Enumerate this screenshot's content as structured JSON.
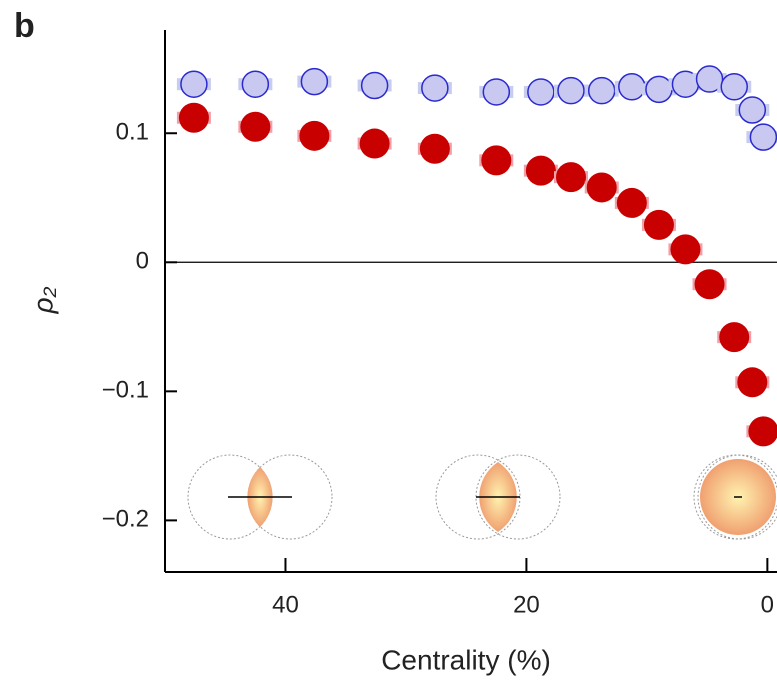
{
  "chart_data": {
    "type": "scatter",
    "panel_label": "b",
    "xlabel": "Centrality (%)",
    "ylabel": "ρ₂",
    "xlim": [
      50,
      -0.8
    ],
    "ylim": [
      -0.24,
      0.18
    ],
    "xticks": [
      40,
      20,
      0
    ],
    "yticks": [
      0.1,
      0,
      {
        "value": -0.1,
        "label": "−0.1"
      },
      {
        "value": -0.2,
        "label": "−0.2"
      }
    ],
    "hline": 0,
    "series": [
      {
        "color": "#2a2ad0",
        "x": [
          47.6,
          42.5,
          37.6,
          32.6,
          27.6,
          22.5,
          18.8,
          16.3,
          13.75,
          11.25,
          9,
          6.8,
          4.8,
          2.75,
          1.25,
          0.33
        ],
        "values": [
          0.138,
          0.138,
          0.14,
          0.137,
          0.135,
          0.132,
          0.132,
          0.133,
          0.133,
          0.136,
          0.134,
          0.138,
          0.142,
          0.136,
          0.118,
          0.097
        ]
      },
      {
        "color": "#c80000",
        "x": [
          47.6,
          42.5,
          37.6,
          32.6,
          27.6,
          22.5,
          18.8,
          16.3,
          13.75,
          11.25,
          9,
          6.8,
          4.8,
          2.75,
          1.25,
          0.33
        ],
        "values": [
          0.112,
          0.105,
          0.098,
          0.092,
          0.088,
          0.079,
          0.071,
          0.066,
          0.058,
          0.046,
          0.029,
          0.01,
          -0.017,
          -0.058,
          -0.093,
          -0.131
        ]
      }
    ]
  }
}
